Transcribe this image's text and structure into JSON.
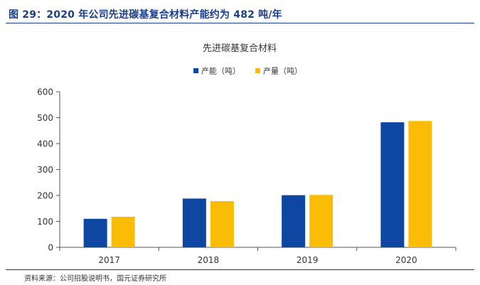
{
  "figure": {
    "title": "图 29：2020 年公司先进碳基复合材料产能约为 482 吨/年"
  },
  "chart_data": {
    "type": "bar",
    "title": "先进碳基复合材料",
    "categories": [
      "2017",
      "2018",
      "2019",
      "2020"
    ],
    "series": [
      {
        "name": "产能（吨）",
        "color": "#0d47a1",
        "values": [
          110,
          188,
          201,
          482
        ]
      },
      {
        "name": "产量（吨）",
        "color": "#fbbc05",
        "values": [
          118,
          178,
          202,
          487
        ]
      }
    ],
    "ylim": [
      0,
      600
    ],
    "yticks": [
      0,
      100,
      200,
      300,
      400,
      500,
      600
    ],
    "xlabel": "",
    "ylabel": "",
    "legend_position": "top-center",
    "grid": false
  },
  "source": {
    "text": "资料来源：公司招股说明书，国元证券研究所"
  }
}
